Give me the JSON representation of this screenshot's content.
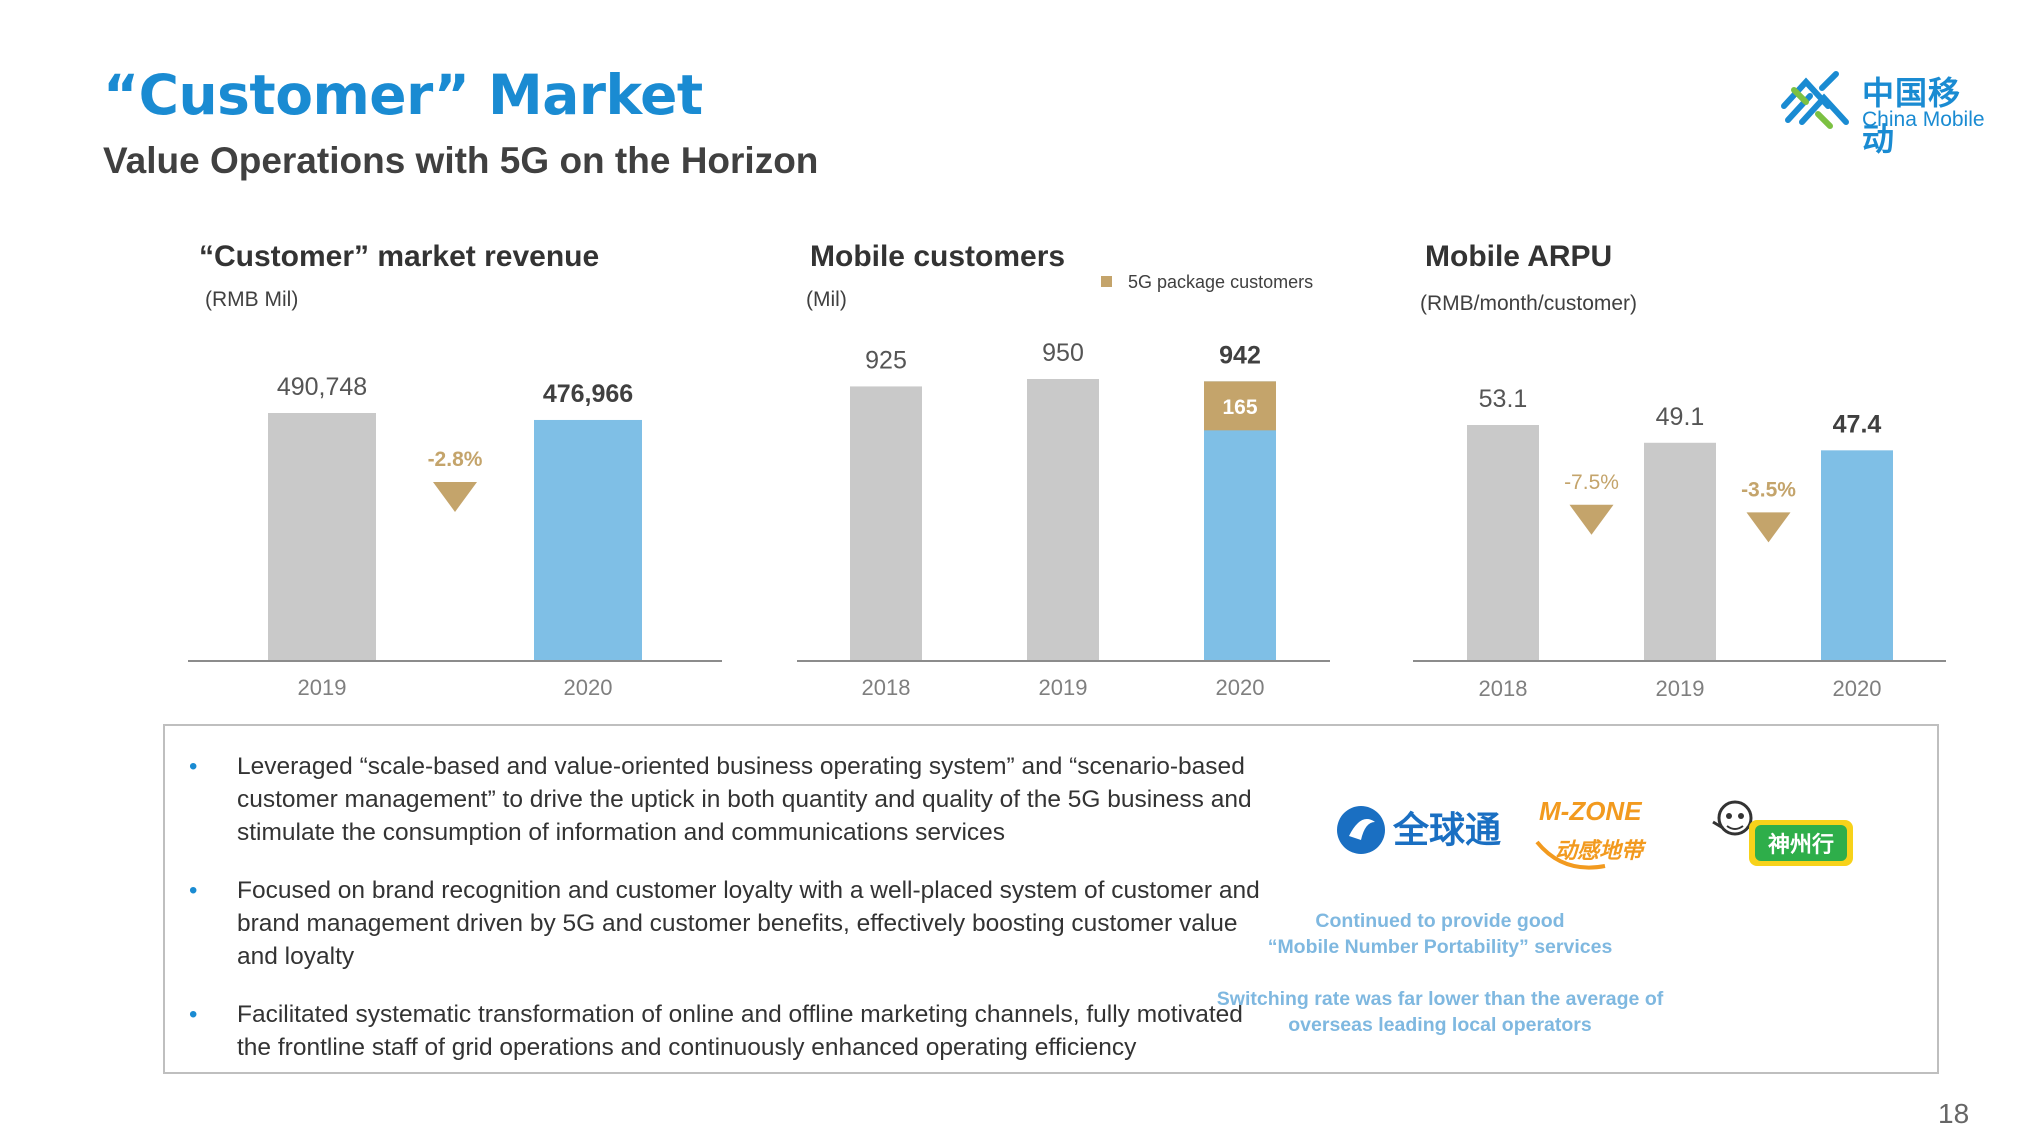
{
  "header": {
    "title": "“Customer” Market",
    "subtitle": "Value Operations with 5G on the Horizon"
  },
  "logo": {
    "cn_text": "中国移动",
    "en_text": "China Mobile",
    "color": "#1a8bd2"
  },
  "colors": {
    "prior_bar": "#c9c9c9",
    "current_bar": "#7fbfe6",
    "gold": "#c4a46b",
    "axis": "#8c8c8c",
    "title_blue": "#1a8bd2",
    "note_blue": "#7fb8e0"
  },
  "chart_data": [
    {
      "type": "bar",
      "title": "“Customer” market revenue",
      "unit_label": "(RMB Mil)",
      "categories": [
        "2019",
        "2020"
      ],
      "values": [
        490748,
        476966
      ],
      "value_labels": [
        "490,748",
        "476,966"
      ],
      "ylim": [
        0,
        500000
      ],
      "changes": [
        {
          "between": [
            "2019",
            "2020"
          ],
          "label": "-2.8%"
        }
      ],
      "highlight_last": true
    },
    {
      "type": "bar",
      "title": "Mobile customers",
      "unit_label": "(Mil)",
      "categories": [
        "2018",
        "2019",
        "2020"
      ],
      "values": [
        925,
        950,
        942
      ],
      "value_labels": [
        "925",
        "950",
        "942"
      ],
      "ylim": [
        0,
        1000
      ],
      "stacked_top": {
        "category": "2020",
        "value": 165,
        "label": "165",
        "name": "5G package customers"
      },
      "legend": {
        "label": "5G package customers",
        "position": "top-right"
      },
      "highlight_last": true
    },
    {
      "type": "bar",
      "title": "Mobile ARPU",
      "unit_label": "(RMB/month/customer)",
      "categories": [
        "2018",
        "2019",
        "2020"
      ],
      "values": [
        53.1,
        49.1,
        47.4
      ],
      "value_labels": [
        "53.1",
        "49.1",
        "47.4"
      ],
      "ylim": [
        0,
        60
      ],
      "changes": [
        {
          "between": [
            "2018",
            "2019"
          ],
          "label": "-7.5%"
        },
        {
          "between": [
            "2019",
            "2020"
          ],
          "label": "-3.5%"
        }
      ],
      "highlight_last": true
    }
  ],
  "bullets": [
    "Leveraged “scale-based and value-oriented business operating system” and “scenario-based customer management” to drive the uptick in both quantity and quality of the 5G business and stimulate the consumption of information and communications services",
    "Focused on brand recognition and customer loyalty with a well-placed system of customer and brand management driven by 5G and customer benefits, effectively boosting customer value and loyalty",
    "Facilitated systematic transformation of online and offline marketing channels, fully motivated the frontline staff of grid operations and continuously enhanced operating efficiency"
  ],
  "bullet_marker": "•",
  "brands": {
    "quanqiutong": "全球通",
    "mzone_top": "M-ZONE",
    "mzone_bottom": "动感地带",
    "shenzhouxing": "神州行"
  },
  "notes": {
    "portability_line1": "Continued to provide good",
    "portability_line2": "“Mobile Number Portability” services",
    "switching_line1": "Switching rate was far lower than the average of",
    "switching_line2": "overseas leading local operators"
  },
  "page_number": "18"
}
